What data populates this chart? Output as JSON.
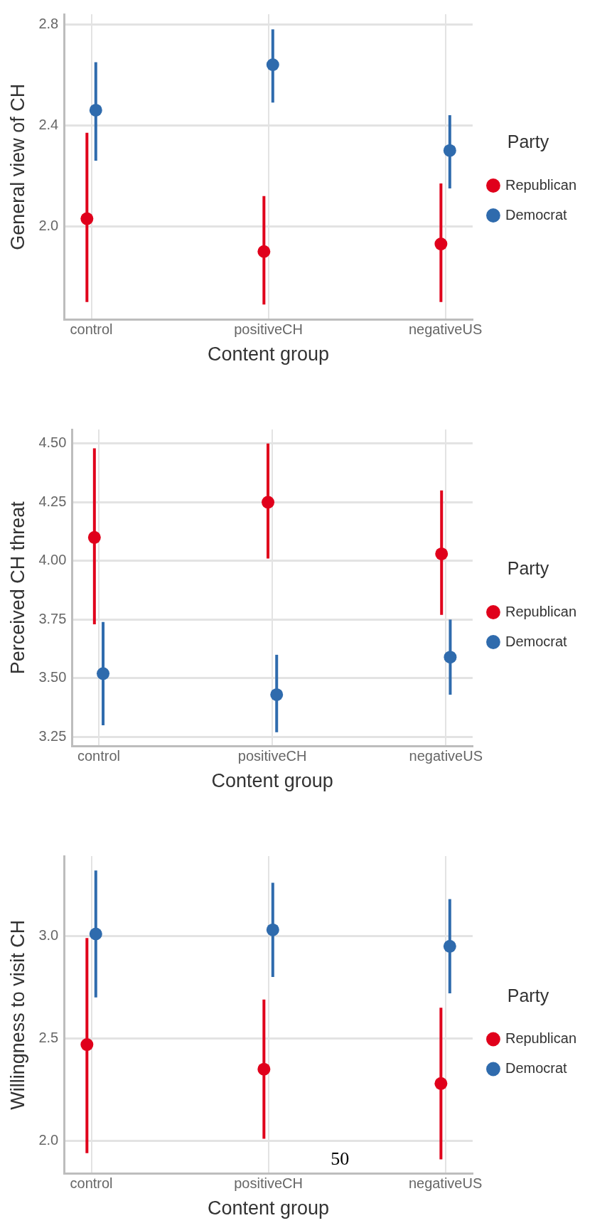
{
  "chart_data": [
    {
      "type": "scatter",
      "xlabel": "Content group",
      "ylabel": "General view of CH",
      "legend_title": "Party",
      "legend": "right",
      "grid": true,
      "marker": "circle",
      "categories": [
        "control",
        "positiveCH",
        "negativeUS"
      ],
      "ylim": [
        1.63,
        2.84
      ],
      "yticks": [
        {
          "value": 2.0,
          "label": "2.0"
        },
        {
          "value": 2.4,
          "label": "2.4"
        },
        {
          "value": 2.8,
          "label": "2.8"
        }
      ],
      "series": [
        {
          "name": "Republican",
          "color": "#e0001b",
          "values": [
            2.03,
            1.9,
            1.93
          ],
          "errors": [
            [
              1.7,
              2.37
            ],
            [
              1.69,
              2.12
            ],
            [
              1.7,
              2.17
            ]
          ]
        },
        {
          "name": "Democrat",
          "color": "#2f6bad",
          "values": [
            2.46,
            2.64,
            2.3
          ],
          "errors": [
            [
              2.26,
              2.65
            ],
            [
              2.49,
              2.78
            ],
            [
              2.15,
              2.44
            ]
          ]
        }
      ]
    },
    {
      "type": "scatter",
      "xlabel": "Content group",
      "ylabel": "Perceived CH threat",
      "legend_title": "Party",
      "legend": "right",
      "grid": true,
      "marker": "circle",
      "categories": [
        "control",
        "positiveCH",
        "negativeUS"
      ],
      "ylim": [
        3.21,
        4.56
      ],
      "yticks": [
        {
          "value": 3.25,
          "label": "3.25"
        },
        {
          "value": 3.5,
          "label": "3.50"
        },
        {
          "value": 3.75,
          "label": "3.75"
        },
        {
          "value": 4.0,
          "label": "4.00"
        },
        {
          "value": 4.25,
          "label": "4.25"
        },
        {
          "value": 4.5,
          "label": "4.50"
        }
      ],
      "series": [
        {
          "name": "Republican",
          "color": "#e0001b",
          "values": [
            4.1,
            4.25,
            4.03
          ],
          "errors": [
            [
              3.73,
              4.48
            ],
            [
              4.01,
              4.5
            ],
            [
              3.77,
              4.3
            ]
          ]
        },
        {
          "name": "Democrat",
          "color": "#2f6bad",
          "values": [
            3.52,
            3.43,
            3.59
          ],
          "errors": [
            [
              3.3,
              3.74
            ],
            [
              3.27,
              3.6
            ],
            [
              3.43,
              3.75
            ]
          ]
        }
      ]
    },
    {
      "type": "scatter",
      "xlabel": "Content group",
      "ylabel": "Willingness to visit CH",
      "legend_title": "Party",
      "legend": "right",
      "grid": true,
      "marker": "circle",
      "categories": [
        "control",
        "positiveCH",
        "negativeUS"
      ],
      "ylim": [
        1.84,
        3.39
      ],
      "yticks": [
        {
          "value": 2.0,
          "label": "2.0"
        },
        {
          "value": 2.5,
          "label": "2.5"
        },
        {
          "value": 3.0,
          "label": "3.0"
        }
      ],
      "annotations": [
        "50"
      ],
      "series": [
        {
          "name": "Republican",
          "color": "#e0001b",
          "values": [
            2.47,
            2.35,
            2.28
          ],
          "errors": [
            [
              1.94,
              2.99
            ],
            [
              2.01,
              2.69
            ],
            [
              1.91,
              2.65
            ]
          ]
        },
        {
          "name": "Democrat",
          "color": "#2f6bad",
          "values": [
            3.01,
            3.03,
            2.95
          ],
          "errors": [
            [
              2.7,
              3.32
            ],
            [
              2.8,
              3.26
            ],
            [
              2.72,
              3.18
            ]
          ]
        }
      ]
    }
  ]
}
